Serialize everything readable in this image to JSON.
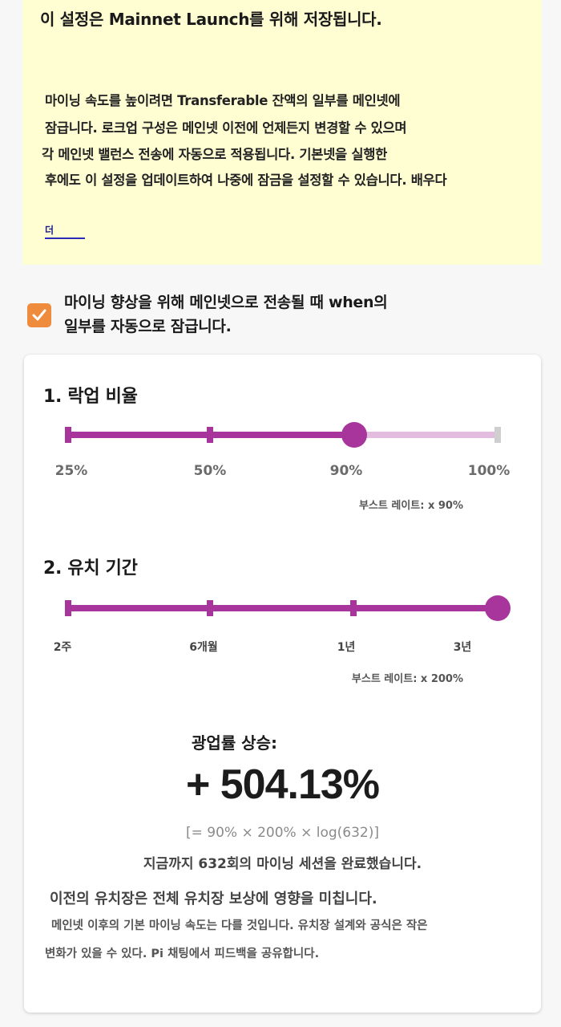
{
  "notice": {
    "title": "이 설정은 Mainnet Launch를 위해 저장됩니다.",
    "lines": [
      "마이닝 속도를 높이려면 Transferable 잔액의 일부를 메인넷에",
      "잠급니다. 로크업 구성은 메인넷 이전에 언제든지 변경할 수 있으며",
      "각 메인넷 밸런스 전송에 자동으로 적용됩니다. 기본넷을 실행한",
      "후에도 이 설정을 업데이트하여 나중에 잠금을 설정할 수 있습니다. 배우다"
    ],
    "learn_more": "더"
  },
  "auto_lock": {
    "checked": true,
    "label_line1": "마이닝 향상을 위해 메인넷으로 전송될 때 when의",
    "label_line2": "일부를 자동으로 잠급니다."
  },
  "lockup_ratio": {
    "title": "1. 락업 비율",
    "ticks": [
      "25%",
      "50%",
      "90%",
      "100%"
    ],
    "selected": "90%",
    "boost": "부스트 레이트: x 90%"
  },
  "lockup_period": {
    "title": "2. 유치 기간",
    "ticks": [
      "2주",
      "6개월",
      "1년",
      "3년"
    ],
    "selected": "3년",
    "boost": "부스트 레이트: x 200%"
  },
  "result": {
    "title": "광업률 상승:",
    "value": "+ 504.13%",
    "formula": "[= 90% × 200% × log(632)]",
    "sessions": "지금까지 632회의 마이닝 세션을 완료했습니다.",
    "impact": "이전의 유치장은 전체 유치장 보상에 영향을 미칩니다.",
    "footnote_line1": "메인넷 이후의 기본 마이닝 속도는 다를 것입니다. 유치장 설계와 공식은 작은",
    "footnote_line2": "변화가 있을 수 있다. Pi 채팅에서 피드백을 공유합니다."
  },
  "colors": {
    "notice_bg": "#fffdd2",
    "accent_purple": "#a8359c",
    "track_light": "#e3bce0",
    "checkbox_orange": "#ef8b3d"
  }
}
